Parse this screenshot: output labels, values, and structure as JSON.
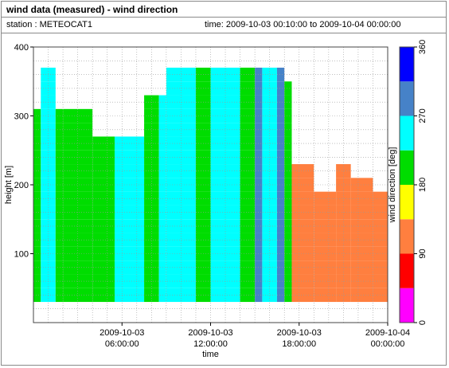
{
  "header": {
    "title": "wind data (measured) - wind direction",
    "station": "station : METEOCAT1",
    "time_range": "time: 2009-10-03 00:10:00 to 2009-10-04 00:00:00"
  },
  "chart_data": {
    "type": "heatmap",
    "title": "wind data (measured) - wind direction",
    "xlabel": "time",
    "ylabel": "height [m]",
    "colorbar_label": "wind direction [deg]",
    "x_range_hours": [
      0,
      24
    ],
    "x_ticks": [
      {
        "hours": 6,
        "line1": "2009-10-03",
        "line2": "06:00:00"
      },
      {
        "hours": 12,
        "line1": "2009-10-03",
        "line2": "12:00:00"
      },
      {
        "hours": 18,
        "line1": "2009-10-03",
        "line2": "18:00:00"
      },
      {
        "hours": 24,
        "line1": "2009-10-04",
        "line2": "00:00:00"
      }
    ],
    "ylim": [
      0,
      400
    ],
    "y_ticks": [
      100,
      200,
      300,
      400
    ],
    "grid": true,
    "colorbar": {
      "range": [
        0,
        360
      ],
      "ticks": [
        0,
        90,
        180,
        270,
        360
      ],
      "bins": [
        {
          "from": 0,
          "to": 45,
          "color": "#ff00ff"
        },
        {
          "from": 45,
          "to": 90,
          "color": "#ff0000"
        },
        {
          "from": 90,
          "to": 135,
          "color": "#ff7f3f"
        },
        {
          "from": 135,
          "to": 180,
          "color": "#ffff00"
        },
        {
          "from": 180,
          "to": 225,
          "color": "#00dd00"
        },
        {
          "from": 225,
          "to": 270,
          "color": "#00ffff"
        },
        {
          "from": 270,
          "to": 315,
          "color": "#4682c8"
        },
        {
          "from": 315,
          "to": 360,
          "color": "#0000ff"
        }
      ]
    },
    "heights_m": [
      40,
      60,
      80,
      100,
      120,
      140,
      160,
      180,
      200,
      220,
      240,
      260,
      280,
      300,
      320,
      340,
      360
    ],
    "periods": [
      {
        "from_h": 0.0,
        "to_h": 0.5,
        "direction_deg": 200,
        "top_m": 300
      },
      {
        "from_h": 0.5,
        "to_h": 1.5,
        "direction_deg": 250,
        "top_m": 360
      },
      {
        "from_h": 1.5,
        "to_h": 2.0,
        "direction_deg": 200,
        "top_m": 300
      },
      {
        "from_h": 2.0,
        "to_h": 4.0,
        "direction_deg": 200,
        "top_m": 310
      },
      {
        "from_h": 4.0,
        "to_h": 5.5,
        "direction_deg": 200,
        "top_m": 260
      },
      {
        "from_h": 5.5,
        "to_h": 7.5,
        "direction_deg": 250,
        "top_m": 260
      },
      {
        "from_h": 7.5,
        "to_h": 8.5,
        "direction_deg": 200,
        "top_m": 330
      },
      {
        "from_h": 8.5,
        "to_h": 9.0,
        "direction_deg": 250,
        "top_m": 330
      },
      {
        "from_h": 9.0,
        "to_h": 11.0,
        "direction_deg": 250,
        "top_m": 360
      },
      {
        "from_h": 11.0,
        "to_h": 12.0,
        "direction_deg": 200,
        "top_m": 360
      },
      {
        "from_h": 12.0,
        "to_h": 14.0,
        "direction_deg": 250,
        "top_m": 360
      },
      {
        "from_h": 14.0,
        "to_h": 15.0,
        "direction_deg": 200,
        "top_m": 360
      },
      {
        "from_h": 15.0,
        "to_h": 15.5,
        "direction_deg": 290,
        "top_m": 360
      },
      {
        "from_h": 15.5,
        "to_h": 16.5,
        "direction_deg": 250,
        "top_m": 360
      },
      {
        "from_h": 16.5,
        "to_h": 17.0,
        "direction_deg": 290,
        "top_m": 360
      },
      {
        "from_h": 17.0,
        "to_h": 17.5,
        "direction_deg": 200,
        "top_m": 350
      },
      {
        "from_h": 17.5,
        "to_h": 19.0,
        "direction_deg": 110,
        "top_m": 220
      },
      {
        "from_h": 19.0,
        "to_h": 20.5,
        "direction_deg": 110,
        "top_m": 180
      },
      {
        "from_h": 20.5,
        "to_h": 21.5,
        "direction_deg": 110,
        "top_m": 230
      },
      {
        "from_h": 21.5,
        "to_h": 23.0,
        "direction_deg": 110,
        "top_m": 200
      },
      {
        "from_h": 23.0,
        "to_h": 24.0,
        "direction_deg": 110,
        "top_m": 180
      }
    ]
  }
}
